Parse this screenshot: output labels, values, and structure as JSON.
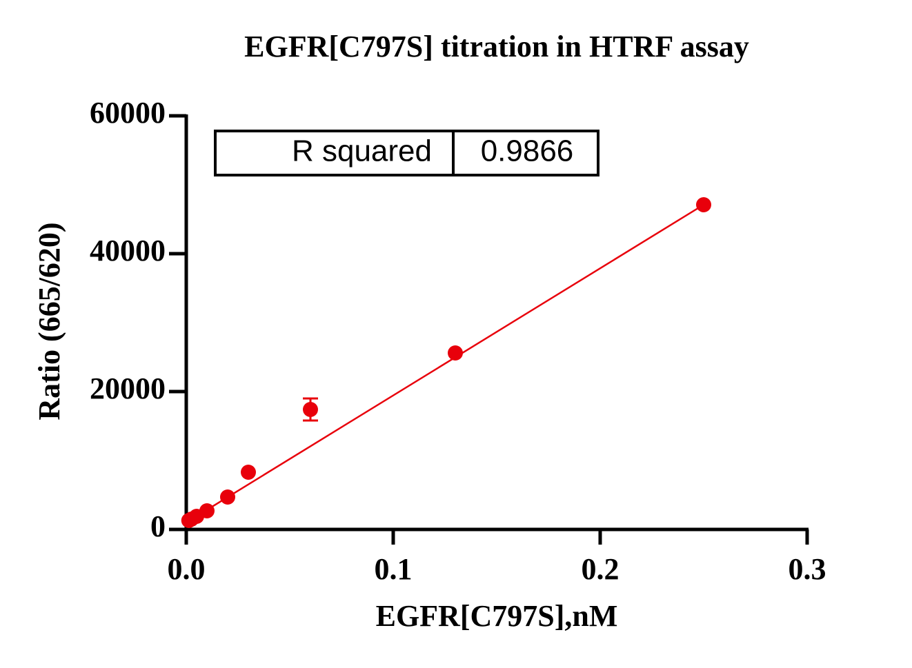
{
  "chart_data": {
    "type": "scatter",
    "title": "EGFR[C797S] titration in  HTRF assay",
    "x_label": "EGFR[C797S],nM",
    "y_label": "Ratio (665/620)",
    "x": [
      0.00125,
      0.0025,
      0.005,
      0.01,
      0.02,
      0.03,
      0.06,
      0.13,
      0.25
    ],
    "values": [
      1300,
      1500,
      1900,
      2700,
      4700,
      8300,
      17400,
      25600,
      47100
    ],
    "errors": [
      null,
      null,
      null,
      null,
      null,
      null,
      1600,
      null,
      null
    ],
    "color": "#e8000b",
    "fit_line": {
      "x": [
        0,
        0.25
      ],
      "values": [
        1000,
        47100
      ]
    },
    "xlim": [
      0,
      0.3
    ],
    "xticks": [
      {
        "value": 0,
        "label": "0.0"
      },
      0.1,
      0.2,
      0.3
    ],
    "ylim": [
      0,
      60000
    ],
    "yticks": [
      0,
      20000,
      40000,
      60000
    ],
    "annotation_table": [
      "R squared",
      "0.9866"
    ]
  }
}
